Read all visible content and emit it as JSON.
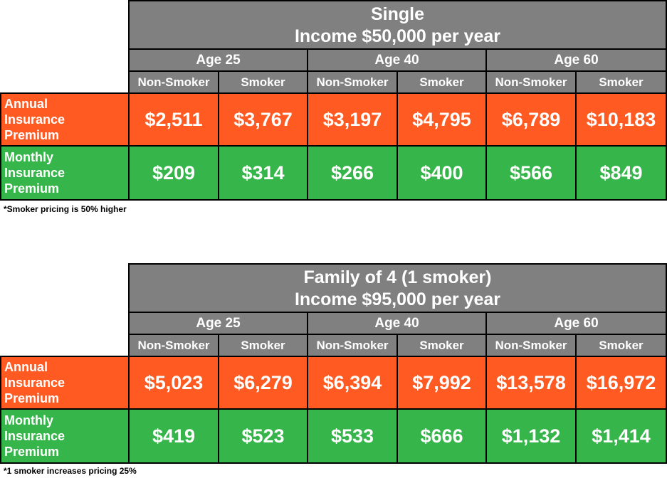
{
  "tables": [
    {
      "title_line1": "Single",
      "title_line2": "Income $50,000 per year",
      "ages": [
        "Age 25",
        "Age 40",
        "Age 60"
      ],
      "sub_headers": [
        "Non-Smoker",
        "Smoker",
        "Non-Smoker",
        "Smoker",
        "Non-Smoker",
        "Smoker"
      ],
      "rows": [
        {
          "label": [
            "Annual",
            "Insurance",
            "Premium"
          ],
          "color": "#ff5a22",
          "values": [
            "$2,511",
            "$3,767",
            "$3,197",
            "$4,795",
            "$6,789",
            "$10,183"
          ]
        },
        {
          "label": [
            "Monthly",
            "Insurance",
            "Premium"
          ],
          "color": "#35b54a",
          "values": [
            "$209",
            "$314",
            "$266",
            "$400",
            "$566",
            "$849"
          ]
        }
      ],
      "footnote": "*Smoker pricing is 50% higher"
    },
    {
      "title_line1": "Family of 4 (1 smoker)",
      "title_line2": "Income $95,000 per year",
      "ages": [
        "Age 25",
        "Age 40",
        "Age 60"
      ],
      "sub_headers": [
        "Non-Smoker",
        "Smoker",
        "Non-Smoker",
        "Smoker",
        "Non-Smoker",
        "Smoker"
      ],
      "rows": [
        {
          "label": [
            "Annual",
            "Insurance",
            "Premium"
          ],
          "color": "#ff5a22",
          "values": [
            "$5,023",
            "$6,279",
            "$6,394",
            "$7,992",
            "$13,578",
            "$16,972"
          ]
        },
        {
          "label": [
            "Monthly",
            "Insurance",
            "Premium"
          ],
          "color": "#35b54a",
          "values": [
            "$419",
            "$523",
            "$533",
            "$666",
            "$1,132",
            "$1,414"
          ]
        }
      ],
      "footnote": "*1 smoker increases pricing 25%"
    }
  ],
  "colors": {
    "header_gray": "#808080",
    "annual_orange": "#ff5a22",
    "monthly_green": "#35b54a"
  }
}
